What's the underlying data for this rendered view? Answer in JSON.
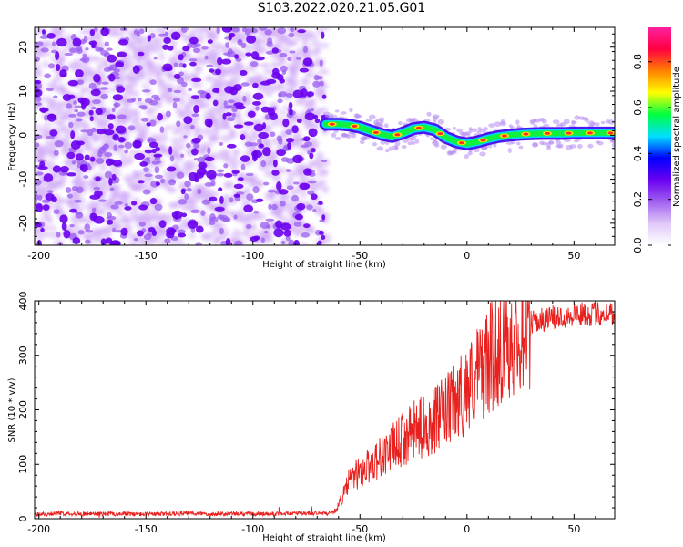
{
  "title": "S103.2022.020.21.05.G01",
  "chart_data": [
    {
      "type": "heatmap",
      "xlabel": "Height of straight line (km)",
      "ylabel": "Frequency (Hz)",
      "xlim": [
        -202,
        69
      ],
      "ylim": [
        -25,
        24.5
      ],
      "x_ticks": [
        -200,
        -150,
        -100,
        -50,
        0,
        50
      ],
      "x_tick_labels": [
        "-200",
        "-150",
        "-100",
        "-50",
        "0",
        "50"
      ],
      "y_ticks": [
        -20,
        -10,
        0,
        10,
        20
      ],
      "y_tick_labels": [
        "-20",
        "-10",
        "0",
        "10",
        "20"
      ],
      "noise_region": {
        "x_range": [
          -202,
          -66
        ],
        "freq_range": [
          -25,
          24.5
        ]
      },
      "signal_track": {
        "x": [
          -66,
          -60,
          -55,
          -50,
          -45,
          -40,
          -35,
          -30,
          -25,
          -20,
          -15,
          -10,
          -5,
          0,
          5,
          10,
          15,
          20,
          25,
          30,
          35,
          40,
          45,
          50,
          55,
          60,
          65,
          69
        ],
        "freq": [
          2.5,
          2.5,
          2.3,
          1.8,
          1.0,
          0.2,
          -0.3,
          0.5,
          1.5,
          1.8,
          1.2,
          -0.5,
          -1.5,
          -2.0,
          -1.5,
          -0.8,
          -0.3,
          0.0,
          0.2,
          0.3,
          0.4,
          0.4,
          0.4,
          0.5,
          0.5,
          0.5,
          0.5,
          0.5
        ]
      },
      "colorbar": {
        "label": "Normalized spectral amplitude",
        "range": [
          0,
          0.95
        ],
        "ticks": [
          0.0,
          0.2,
          0.4,
          0.6,
          0.8
        ],
        "tick_labels": [
          "0.0",
          "0.2",
          "0.4",
          "0.6",
          "0.8"
        ],
        "colors": [
          "#ffffff",
          "#e0c8f8",
          "#a060f0",
          "#6a00f0",
          "#0000ff",
          "#00e0ff",
          "#00ff40",
          "#ffff00",
          "#ff8000",
          "#ff0040",
          "#ff20a0"
        ]
      },
      "grid": false
    },
    {
      "type": "line",
      "xlabel": "Height of straight line (km)",
      "ylabel": "SNR (10 * v/v)",
      "xlim": [
        -202,
        69
      ],
      "ylim": [
        0,
        400
      ],
      "x_ticks": [
        -200,
        -150,
        -100,
        -50,
        0,
        50
      ],
      "x_tick_labels": [
        "-200",
        "-150",
        "-100",
        "-50",
        "0",
        "50"
      ],
      "y_ticks": [
        0,
        100,
        200,
        300,
        400
      ],
      "y_tick_labels": [
        "0",
        "100",
        "200",
        "300",
        "400"
      ],
      "series": [
        {
          "color": "#e8201e",
          "x": [
            -202,
            -190,
            -180,
            -170,
            -160,
            -150,
            -140,
            -130,
            -120,
            -110,
            -100,
            -90,
            -80,
            -70,
            -65,
            -62,
            -60,
            -57,
            -55,
            -52,
            -50,
            -45,
            -40,
            -35,
            -30,
            -25,
            -20,
            -15,
            -10,
            -5,
            0,
            5,
            10,
            15,
            20,
            25,
            30,
            35,
            40,
            45,
            50,
            55,
            60,
            65,
            69
          ],
          "y": [
            8,
            10,
            9,
            9,
            9,
            8,
            9,
            10,
            9,
            9,
            9,
            9,
            10,
            10,
            10,
            12,
            25,
            50,
            70,
            80,
            85,
            100,
            115,
            130,
            145,
            160,
            170,
            180,
            195,
            215,
            240,
            265,
            290,
            315,
            335,
            350,
            360,
            365,
            370,
            372,
            375,
            375,
            376,
            377,
            378
          ]
        }
      ],
      "grid": false
    }
  ]
}
